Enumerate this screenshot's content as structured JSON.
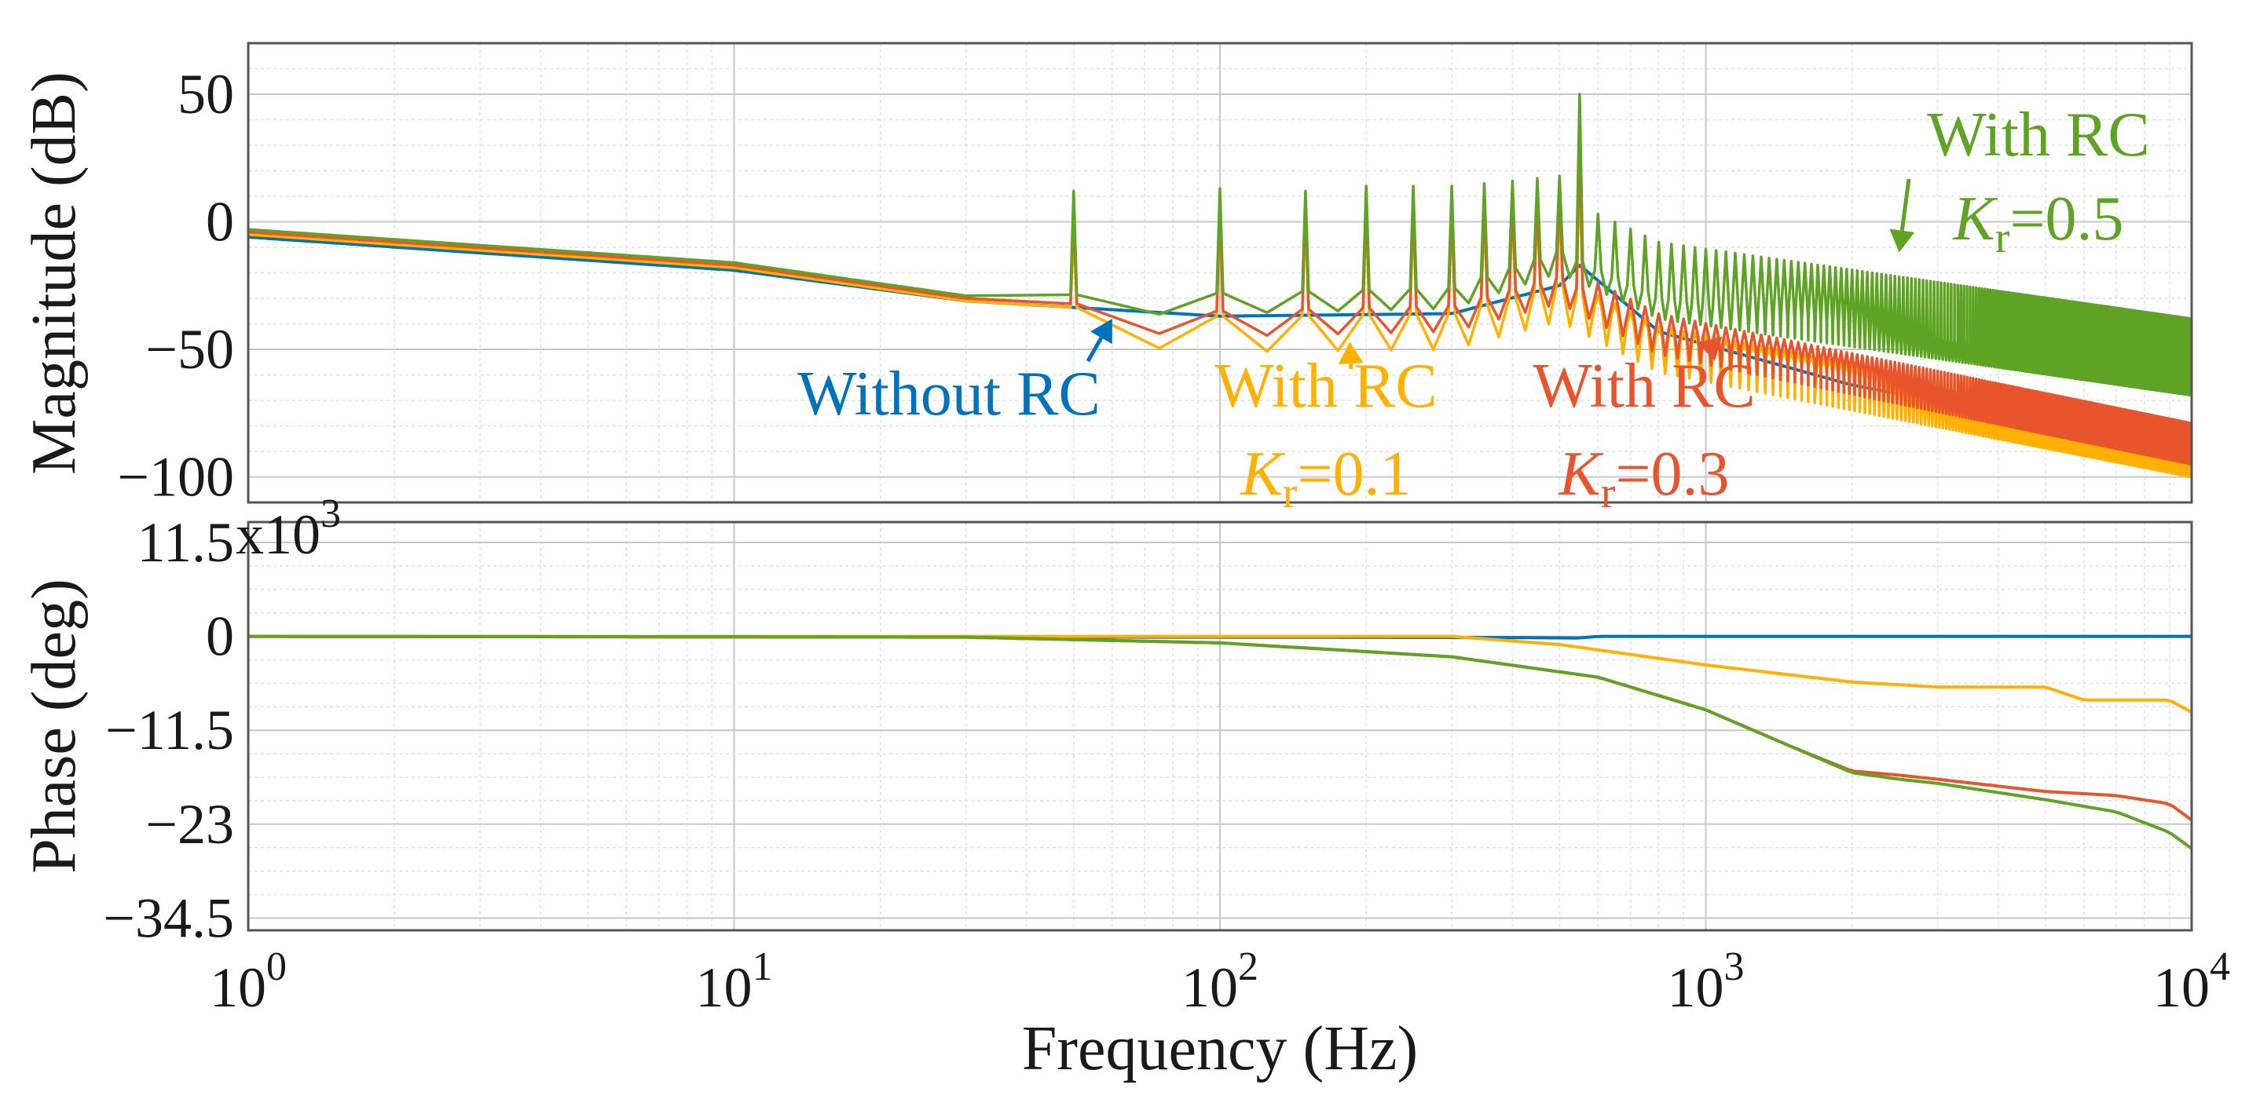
{
  "chart_data": [
    {
      "type": "line",
      "panel": "magnitude",
      "ylabel": "Magnitude (dB)",
      "xscale": "log",
      "xlim": [
        1,
        10000
      ],
      "ylim": [
        -110,
        70
      ],
      "yticks": [
        50,
        0,
        -50,
        -100
      ],
      "ytick_labels": [
        "50",
        "0",
        "−50",
        "−100"
      ],
      "grid": true,
      "series": [
        {
          "name": "Without RC",
          "color": "#0072BD",
          "resonance_peaks_db": [],
          "base_points_hz_db": [
            [
              1,
              -6
            ],
            [
              10,
              -19
            ],
            [
              30,
              -31
            ],
            [
              100,
              -37
            ],
            [
              300,
              -36
            ],
            [
              500,
              -25
            ],
            [
              550,
              -17
            ],
            [
              800,
              -43
            ],
            [
              2000,
              -64
            ],
            [
              10000,
              -89
            ]
          ]
        },
        {
          "name": "With RC Kr=0.1",
          "color": "#FFB000",
          "resonance_peaks_db": [
            -2,
            3,
            5,
            5,
            4,
            4,
            4,
            5,
            5,
            6,
            20
          ],
          "base_points_hz_db": [
            [
              1,
              -5
            ],
            [
              10,
              -18
            ],
            [
              30,
              -31
            ],
            [
              100,
              -37
            ],
            [
              300,
              -36
            ],
            [
              500,
              -25
            ],
            [
              800,
              -45
            ],
            [
              10000,
              -86
            ]
          ]
        },
        {
          "name": "With RC Kr=0.3",
          "color": "#E8552C",
          "resonance_peaks_db": [
            5,
            8,
            9,
            9,
            9,
            9,
            9,
            9,
            10,
            12,
            35
          ],
          "base_points_hz_db": [
            [
              1,
              -4
            ],
            [
              10,
              -17
            ],
            [
              30,
              -30
            ],
            [
              100,
              -35
            ],
            [
              300,
              -33
            ],
            [
              500,
              -22
            ],
            [
              800,
              -42
            ],
            [
              10000,
              -85
            ]
          ]
        },
        {
          "name": "With RC Kr=0.5",
          "color": "#5FA324",
          "resonance_peaks_db": [
            12,
            13,
            12,
            14,
            14,
            14,
            15,
            16,
            17,
            18,
            50
          ],
          "base_points_hz_db": [
            [
              1,
              -3
            ],
            [
              10,
              -16
            ],
            [
              30,
              -29
            ],
            [
              100,
              -28
            ],
            [
              300,
              -26
            ],
            [
              500,
              -12
            ],
            [
              800,
              -30
            ],
            [
              10000,
              -60
            ]
          ]
        }
      ],
      "annotations": [
        {
          "series": 0,
          "lines": [
            "Without RC"
          ],
          "color": "#0072BD",
          "target_hz": 60,
          "target_db": -38
        },
        {
          "series": 1,
          "lines": [
            "With RC",
            "Kr=0.1"
          ],
          "color": "#FFB000",
          "target_hz": 185,
          "target_db": -47
        },
        {
          "series": 2,
          "lines": [
            "With RC",
            "Kr=0.3"
          ],
          "color": "#E8552C",
          "target_hz": 1080,
          "target_db": -45
        },
        {
          "series": 3,
          "lines": [
            "With RC",
            "Kr=0.5"
          ],
          "color": "#5FA324",
          "target_hz": 2500,
          "target_db": -12
        }
      ]
    },
    {
      "type": "line",
      "panel": "phase",
      "ylabel": "Phase (deg)",
      "xlabel": "Frequency (Hz)",
      "xscale": "log",
      "xlim": [
        1,
        10000
      ],
      "xticks": [
        1,
        10,
        100,
        1000,
        10000
      ],
      "xtick_bases": [
        "10",
        "10",
        "10",
        "10",
        "10"
      ],
      "xtick_exponents": [
        "0",
        "1",
        "2",
        "3",
        "4"
      ],
      "ylim": [
        -36000,
        14000
      ],
      "yticks": [
        11500,
        0,
        -11500,
        -23000,
        -34500
      ],
      "ytick_labels": [
        "11.5",
        "0",
        "−11.5",
        "−23",
        "−34.5"
      ],
      "yscale_label": "x10",
      "yscale_exponent": "3",
      "grid": true,
      "series": [
        {
          "name": "Without RC",
          "color": "#0072BD",
          "points_hz_deg": [
            [
              1,
              0
            ],
            [
              100,
              -100
            ],
            [
              400,
              -150
            ],
            [
              550,
              -200
            ],
            [
              600,
              0
            ],
            [
              10000,
              0
            ]
          ]
        },
        {
          "name": "With RC Kr=0.1",
          "color": "#FFB000",
          "points_hz_deg": [
            [
              1,
              0
            ],
            [
              100,
              0
            ],
            [
              300,
              0
            ],
            [
              500,
              -1000
            ],
            [
              1000,
              -3500
            ],
            [
              2000,
              -5600
            ],
            [
              3000,
              -6200
            ],
            [
              5000,
              -6200
            ],
            [
              6000,
              -7800
            ],
            [
              9000,
              -7800
            ],
            [
              10000,
              -9300
            ]
          ]
        },
        {
          "name": "With RC Kr=0.3",
          "color": "#E8552C",
          "points_hz_deg": [
            [
              1,
              0
            ],
            [
              30,
              -100
            ],
            [
              100,
              -800
            ],
            [
              300,
              -2500
            ],
            [
              600,
              -5000
            ],
            [
              1000,
              -9000
            ],
            [
              1500,
              -13500
            ],
            [
              2000,
              -16500
            ],
            [
              2500,
              -17000
            ],
            [
              3000,
              -17500
            ],
            [
              5000,
              -19000
            ],
            [
              7000,
              -19500
            ],
            [
              9000,
              -20500
            ],
            [
              10000,
              -22500
            ]
          ]
        },
        {
          "name": "With RC Kr=0.5",
          "color": "#5FA324",
          "points_hz_deg": [
            [
              1,
              0
            ],
            [
              30,
              -100
            ],
            [
              100,
              -800
            ],
            [
              300,
              -2500
            ],
            [
              600,
              -5000
            ],
            [
              1000,
              -9000
            ],
            [
              1500,
              -13500
            ],
            [
              2000,
              -16700
            ],
            [
              2500,
              -17500
            ],
            [
              3000,
              -18000
            ],
            [
              5000,
              -20000
            ],
            [
              7000,
              -21500
            ],
            [
              9000,
              -24000
            ],
            [
              10000,
              -26000
            ]
          ]
        }
      ]
    }
  ]
}
